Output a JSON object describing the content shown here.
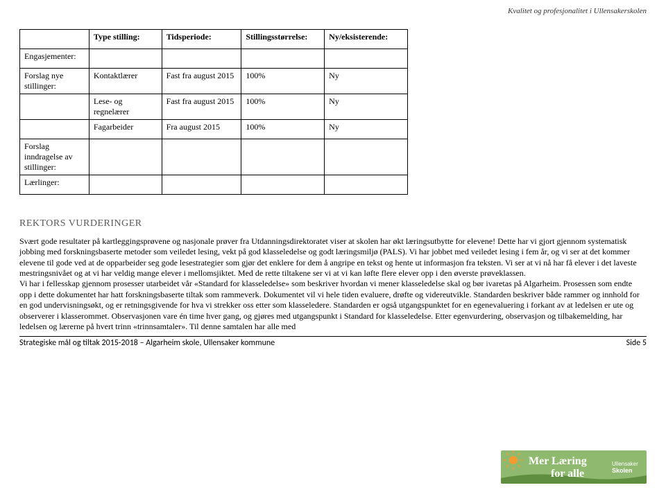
{
  "tagline": "Kvalitet og profesjonalitet i Ullensakerskolen",
  "table": {
    "headers": {
      "type": "Type stilling:",
      "period": "Tidsperiode:",
      "size": "Stillingsstørrelse:",
      "nyeks": "Ny/eksisterende:"
    },
    "rows": [
      {
        "label": "Engasjementer:",
        "type": "",
        "period": "",
        "size": "",
        "nyeks": ""
      },
      {
        "label": "Forslag nye stillinger:",
        "type": "Kontaktlærer",
        "period": "Fast fra august 2015",
        "size": "100%",
        "nyeks": "Ny"
      },
      {
        "label": "",
        "type": "Lese- og regnelærer",
        "period": "Fast fra august 2015",
        "size": "100%",
        "nyeks": "Ny"
      },
      {
        "label": "",
        "type": "Fagarbeider",
        "period": "Fra august 2015",
        "size": "100%",
        "nyeks": "Ny"
      },
      {
        "label": "Forslag inndragelse av stillinger:",
        "type": "",
        "period": "",
        "size": "",
        "nyeks": ""
      },
      {
        "label": "Lærlinger:",
        "type": "",
        "period": "",
        "size": "",
        "nyeks": ""
      }
    ]
  },
  "section_title": "REKTORS VURDERINGER",
  "body_text": "Svært gode resultater på kartleggingsprøvene og nasjonale prøver fra Utdanningsdirektoratet viser at skolen har økt læringsutbytte for elevene! Dette har vi gjort gjennom systematisk jobbing med forskningsbaserte metoder som veiledet lesing, vekt på god klasseledelse og godt læringsmiljø (PALS). Vi har jobbet med veiledet lesing i fem år, og vi ser at det kommer elevene til gode ved at de opparbeider seg gode lesestrategier som gjør det enklere for dem å angripe en tekst og hente ut informasjon fra teksten. Vi ser at vi nå har få elever i det laveste mestringsnivået og at vi har veldig mange elever i mellomsjiktet. Med de rette tiltakene ser vi at vi kan løfte flere elever opp i den øverste prøveklassen.\nVi har i fellesskap gjennom prosesser utarbeidet vår «Standard for klasseledelse» som beskriver hvordan vi mener klasseledelse skal og bør ivaretas på Algarheim. Prosessen som endte opp i dette dokumentet har hatt forskningsbaserte tiltak som rammeverk. Dokumentet vil vi hele tiden evaluere, drøfte og videreutvikle. Standarden beskriver både rammer og innhold for en god undervisningsøkt, og er retningsgivende for hva vi strekker oss etter som klasseledere. Standarden er også utgangspunktet for en egenevaluering i forkant av at ledelsen er ute og observerer i klasserommet. Observasjonen vare én time hver gang, og gjøres med utgangspunkt i Standard for klasseledelse. Etter egenvurdering, observasjon og tilbakemelding, har ledelsen og lærerne på hvert trinn «trinnsamtaler». Til denne samtalen har alle med",
  "footer": {
    "left": "Strategiske mål og tiltak 2015-2018 – Algarheim skole, Ullensaker kommune",
    "right": "Side 5"
  },
  "banner": {
    "line1": "Mer Læring",
    "line2": "for alle",
    "sub1": "Ullensaker",
    "sub2": "Skolen",
    "bg_color": "#8fb96e",
    "grass_color": "#5e8e3e",
    "text_color": "#ffffff",
    "accent_color": "#f59b2e"
  }
}
